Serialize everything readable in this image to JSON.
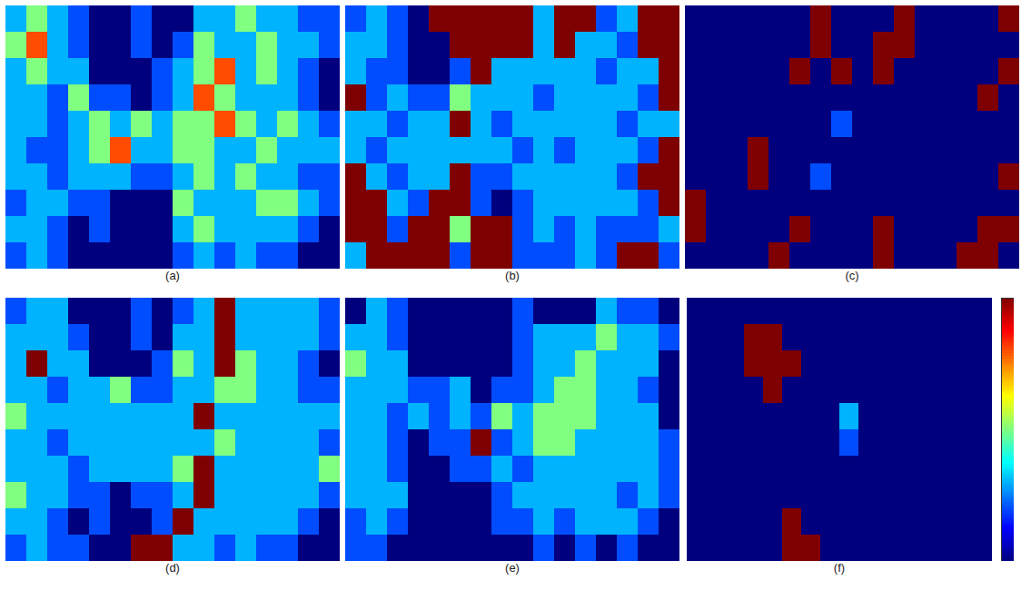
{
  "chart_data": {
    "type": "heatmap",
    "color": "jet",
    "tick_labels": false,
    "colorbar": {
      "range": [
        0,
        1
      ]
    },
    "panels": [
      {
        "label": "(a)",
        "cells": [
          [
            0.3,
            0.5,
            0.3,
            0.2,
            0,
            0,
            0.2,
            0,
            0,
            0.3,
            0.3,
            0.5,
            0.3,
            0.3,
            0.2,
            0.2
          ],
          [
            0.5,
            0.8,
            0.3,
            0.2,
            0,
            0,
            0.2,
            0,
            0.2,
            0.5,
            0.3,
            0.3,
            0.5,
            0.3,
            0.3,
            0.2
          ],
          [
            0.3,
            0.5,
            0.3,
            0.3,
            0,
            0,
            0,
            0.2,
            0.3,
            0.5,
            0.8,
            0.3,
            0.5,
            0.3,
            0.2,
            0
          ],
          [
            0.3,
            0.3,
            0.2,
            0.5,
            0.2,
            0.2,
            0,
            0.2,
            0.3,
            0.8,
            0.5,
            0.3,
            0.3,
            0.3,
            0.2,
            0
          ],
          [
            0.3,
            0.3,
            0.2,
            0.3,
            0.5,
            0.3,
            0.5,
            0.3,
            0.5,
            0.5,
            0.8,
            0.5,
            0.3,
            0.5,
            0.3,
            0.2
          ],
          [
            0.3,
            0.2,
            0.2,
            0.3,
            0.5,
            0.8,
            0.3,
            0.3,
            0.5,
            0.5,
            0.3,
            0.3,
            0.5,
            0.3,
            0.3,
            0.3
          ],
          [
            0.3,
            0.3,
            0.2,
            0.3,
            0.3,
            0.3,
            0.2,
            0.2,
            0.3,
            0.5,
            0.3,
            0.5,
            0.3,
            0.3,
            0.2,
            0.2
          ],
          [
            0.2,
            0.3,
            0.3,
            0.2,
            0.2,
            0,
            0,
            0,
            0.5,
            0.3,
            0.3,
            0.3,
            0.5,
            0.5,
            0.3,
            0.2
          ],
          [
            0.3,
            0.3,
            0.2,
            0,
            0.2,
            0,
            0,
            0,
            0.3,
            0.5,
            0.3,
            0.3,
            0.3,
            0.3,
            0.2,
            0
          ],
          [
            0.2,
            0.3,
            0.2,
            0,
            0,
            0,
            0,
            0,
            0.2,
            0.3,
            0.2,
            0.3,
            0.2,
            0.2,
            0,
            0
          ]
        ]
      },
      {
        "label": "(b)",
        "cells": [
          [
            0.2,
            0.3,
            0.2,
            0,
            1,
            1,
            1,
            1,
            1,
            0.3,
            1,
            1,
            0.2,
            0.3,
            1,
            1
          ],
          [
            0.3,
            0.3,
            0.2,
            0,
            0,
            1,
            1,
            1,
            1,
            0.3,
            1,
            0.3,
            0.3,
            0.2,
            1,
            1
          ],
          [
            0.3,
            0.2,
            0.2,
            0,
            0,
            0.2,
            1,
            0.3,
            0.3,
            0.3,
            0.3,
            0.3,
            0.2,
            0.3,
            0.3,
            1
          ],
          [
            1,
            0.2,
            0.3,
            0.2,
            0.2,
            0.5,
            0.3,
            0.3,
            0.3,
            0.2,
            0.3,
            0.3,
            0.3,
            0.3,
            0.2,
            1
          ],
          [
            0.3,
            0.3,
            0.2,
            0.3,
            0.3,
            1,
            0.3,
            0.2,
            0.3,
            0.3,
            0.3,
            0.3,
            0.3,
            0.2,
            0.3,
            0.3
          ],
          [
            0.3,
            0.2,
            0.3,
            0.3,
            0.3,
            0.3,
            0.3,
            0.3,
            0.2,
            0.3,
            0.2,
            0.3,
            0.3,
            0.3,
            0.2,
            1
          ],
          [
            1,
            0.3,
            0.2,
            0.3,
            0.3,
            1,
            0.2,
            0.2,
            0.3,
            0.3,
            0.3,
            0.3,
            0.3,
            0.2,
            1,
            1
          ],
          [
            1,
            1,
            0.3,
            0.2,
            1,
            1,
            0.2,
            0,
            0.2,
            0.3,
            0.3,
            0.3,
            0.3,
            0.3,
            0.2,
            1
          ],
          [
            1,
            1,
            0.2,
            1,
            1,
            0.5,
            1,
            1,
            0.2,
            0.3,
            0.2,
            0.3,
            0.2,
            0.2,
            0.2,
            0.3
          ],
          [
            0.3,
            1,
            1,
            1,
            1,
            0.2,
            1,
            1,
            0.2,
            0.2,
            0.2,
            0.3,
            0.2,
            1,
            1,
            0.2
          ]
        ]
      },
      {
        "label": "(c)",
        "cells": [
          [
            0,
            0,
            0,
            0,
            0,
            0,
            1,
            0,
            0,
            0,
            1,
            0,
            0,
            0,
            0,
            1
          ],
          [
            0,
            0,
            0,
            0,
            0,
            0,
            1,
            0,
            0,
            1,
            1,
            0,
            0,
            0,
            0,
            0
          ],
          [
            0,
            0,
            0,
            0,
            0,
            1,
            0,
            1,
            0,
            1,
            0,
            0,
            0,
            0,
            0,
            1
          ],
          [
            0,
            0,
            0,
            0,
            0,
            0,
            0,
            0,
            0,
            0,
            0,
            0,
            0,
            0,
            1,
            0
          ],
          [
            0,
            0,
            0,
            0,
            0,
            0,
            0,
            0.2,
            0,
            0,
            0,
            0,
            0,
            0,
            0,
            0
          ],
          [
            0,
            0,
            0,
            1,
            0,
            0,
            0,
            0,
            0,
            0,
            0,
            0,
            0,
            0,
            0,
            0
          ],
          [
            0,
            0,
            0,
            1,
            0,
            0,
            0.2,
            0,
            0,
            0,
            0,
            0,
            0,
            0,
            0,
            1
          ],
          [
            1,
            0,
            0,
            0,
            0,
            0,
            0,
            0,
            0,
            0,
            0,
            0,
            0,
            0,
            0,
            0
          ],
          [
            1,
            0,
            0,
            0,
            0,
            1,
            0,
            0,
            0,
            1,
            0,
            0,
            0,
            0,
            1,
            1
          ],
          [
            0,
            0,
            0,
            0,
            1,
            0,
            0,
            0,
            0,
            1,
            0,
            0,
            0,
            1,
            1,
            0
          ]
        ]
      },
      {
        "label": "(d)",
        "cells": [
          [
            0.2,
            0.3,
            0.3,
            0,
            0,
            0,
            0.2,
            0,
            0.2,
            0.3,
            1,
            0.3,
            0.3,
            0.3,
            0.3,
            0.2
          ],
          [
            0.3,
            0.3,
            0.3,
            0.2,
            0,
            0,
            0.2,
            0,
            0.3,
            0.3,
            1,
            0.3,
            0.3,
            0.3,
            0.3,
            0.2
          ],
          [
            0.3,
            1,
            0.3,
            0.3,
            0,
            0,
            0,
            0.2,
            0.5,
            0.3,
            1,
            0.5,
            0.3,
            0.3,
            0.2,
            0
          ],
          [
            0.3,
            0.3,
            0.2,
            0.3,
            0.3,
            0.5,
            0.2,
            0.2,
            0.3,
            0.3,
            0.5,
            0.5,
            0.3,
            0.3,
            0.2,
            0.2
          ],
          [
            0.5,
            0.3,
            0.3,
            0.3,
            0.3,
            0.3,
            0.3,
            0.3,
            0.3,
            1,
            0.3,
            0.3,
            0.3,
            0.3,
            0.3,
            0.3
          ],
          [
            0.3,
            0.3,
            0.2,
            0.3,
            0.3,
            0.3,
            0.3,
            0.3,
            0.3,
            0.3,
            0.5,
            0.3,
            0.3,
            0.3,
            0.3,
            0.2
          ],
          [
            0.3,
            0.3,
            0.3,
            0.2,
            0.3,
            0.3,
            0.3,
            0.3,
            0.5,
            1,
            0.3,
            0.3,
            0.3,
            0.3,
            0.3,
            0.5
          ],
          [
            0.5,
            0.3,
            0.3,
            0.2,
            0.2,
            0,
            0.2,
            0.2,
            0.3,
            1,
            0.3,
            0.3,
            0.3,
            0.3,
            0.3,
            0.2
          ],
          [
            0.3,
            0.3,
            0.2,
            0,
            0.2,
            0,
            0,
            0.2,
            1,
            0.3,
            0.3,
            0.3,
            0.3,
            0.3,
            0.2,
            0
          ],
          [
            0.2,
            0.3,
            0.2,
            0.2,
            0,
            0,
            1,
            1,
            0.3,
            0.3,
            0.2,
            0.3,
            0.2,
            0.2,
            0,
            0
          ]
        ]
      },
      {
        "label": "(e)",
        "cells": [
          [
            0,
            0.3,
            0.2,
            0,
            0,
            0,
            0,
            0,
            0.2,
            0,
            0,
            0,
            0.3,
            0.2,
            0.2,
            0
          ],
          [
            0.3,
            0.3,
            0.2,
            0,
            0,
            0,
            0,
            0,
            0.2,
            0.3,
            0.3,
            0.3,
            0.5,
            0.3,
            0.3,
            0.2
          ],
          [
            0.5,
            0.3,
            0.3,
            0,
            0,
            0,
            0,
            0,
            0.2,
            0.3,
            0.3,
            0.5,
            0.3,
            0.3,
            0.3,
            0
          ],
          [
            0.3,
            0.3,
            0.3,
            0.2,
            0.2,
            0.3,
            0,
            0.2,
            0.2,
            0.3,
            0.5,
            0.5,
            0.3,
            0.3,
            0.2,
            0
          ],
          [
            0.3,
            0.3,
            0.2,
            0.3,
            0.2,
            0.3,
            0.2,
            0.5,
            0.3,
            0.5,
            0.5,
            0.5,
            0.3,
            0.3,
            0.3,
            0
          ],
          [
            0.3,
            0.3,
            0.2,
            0,
            0.2,
            0.2,
            1,
            0.2,
            0.3,
            0.5,
            0.5,
            0.3,
            0.3,
            0.3,
            0.3,
            0.2
          ],
          [
            0.3,
            0.3,
            0.2,
            0,
            0,
            0.2,
            0.2,
            0.3,
            0.2,
            0.3,
            0.3,
            0.3,
            0.3,
            0.3,
            0.3,
            0.2
          ],
          [
            0.3,
            0.3,
            0.3,
            0,
            0,
            0,
            0,
            0.2,
            0.3,
            0.3,
            0.3,
            0.3,
            0.3,
            0.2,
            0.3,
            0.2
          ],
          [
            0.2,
            0.3,
            0.2,
            0,
            0,
            0,
            0,
            0.2,
            0.2,
            0.3,
            0.2,
            0.3,
            0.3,
            0.3,
            0.2,
            0
          ],
          [
            0.2,
            0.2,
            0,
            0,
            0,
            0,
            0,
            0,
            0,
            0.2,
            0,
            0.2,
            0,
            0.2,
            0,
            0
          ]
        ]
      },
      {
        "label": "(f)",
        "cells": [
          [
            0,
            0,
            0,
            0,
            0,
            0,
            0,
            0,
            0,
            0,
            0,
            0,
            0,
            0,
            0,
            0
          ],
          [
            0,
            0,
            0,
            1,
            1,
            0,
            0,
            0,
            0,
            0,
            0,
            0,
            0,
            0,
            0,
            0
          ],
          [
            0,
            0,
            0,
            1,
            1,
            1,
            0,
            0,
            0,
            0,
            0,
            0,
            0,
            0,
            0,
            0
          ],
          [
            0,
            0,
            0,
            0,
            1,
            0,
            0,
            0,
            0,
            0,
            0,
            0,
            0,
            0,
            0,
            0
          ],
          [
            0,
            0,
            0,
            0,
            0,
            0,
            0,
            0,
            0.3,
            0,
            0,
            0,
            0,
            0,
            0,
            0
          ],
          [
            0,
            0,
            0,
            0,
            0,
            0,
            0,
            0,
            0.2,
            0,
            0,
            0,
            0,
            0,
            0,
            0
          ],
          [
            0,
            0,
            0,
            0,
            0,
            0,
            0,
            0,
            0,
            0,
            0,
            0,
            0,
            0,
            0,
            0
          ],
          [
            0,
            0,
            0,
            0,
            0,
            0,
            0,
            0,
            0,
            0,
            0,
            0,
            0,
            0,
            0,
            0
          ],
          [
            0,
            0,
            0,
            0,
            0,
            1,
            0,
            0,
            0,
            0,
            0,
            0,
            0,
            0,
            0,
            0
          ],
          [
            0,
            0,
            0,
            0,
            0,
            1,
            1,
            0,
            0,
            0,
            0,
            0,
            0,
            0,
            0,
            0
          ]
        ]
      }
    ]
  }
}
